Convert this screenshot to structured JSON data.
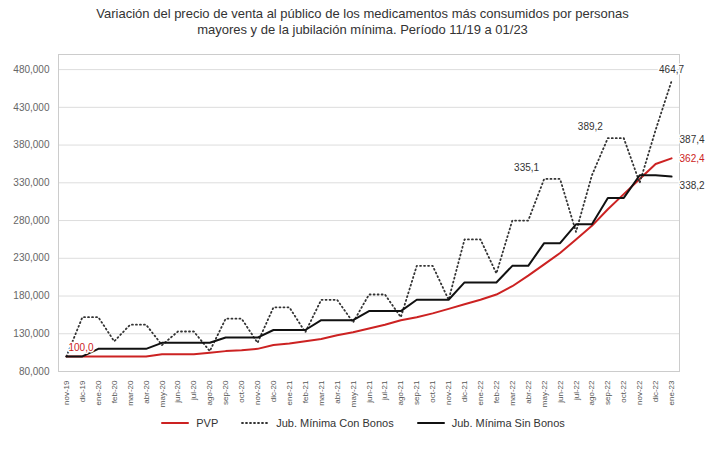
{
  "chart_data": {
    "type": "line",
    "title": "Variación del precio de venta al público de los medicamentos más consumidos por personas\nmayores y de la jubilación mínima. Período 11/19 a 01/23",
    "categories": [
      "nov-19",
      "dic-19",
      "ene-20",
      "feb-20",
      "mar-20",
      "abr-20",
      "may-20",
      "jun-20",
      "jul-20",
      "ago-20",
      "sep-20",
      "oct-20",
      "nov-20",
      "dic-20",
      "ene-21",
      "feb-21",
      "mar-21",
      "abr-21",
      "may-21",
      "jun-21",
      "jul-21",
      "ago-21",
      "sep-21",
      "oct-21",
      "nov-21",
      "dic-21",
      "ene-22",
      "feb-22",
      "mar-22",
      "abr-22",
      "may-22",
      "jun-22",
      "jul-22",
      "ago-22",
      "sep-22",
      "oct-22",
      "nov-22",
      "dic-22",
      "ene-23"
    ],
    "series": [
      {
        "name": "PVP",
        "color": "#cc2222",
        "line_style": "solid",
        "values": [
          100000,
          100000,
          100000,
          100000,
          100000,
          100000,
          103000,
          103000,
          103000,
          105000,
          107000,
          108000,
          110000,
          115000,
          117000,
          120000,
          123000,
          128000,
          132000,
          137000,
          142000,
          148000,
          152000,
          157000,
          163000,
          169000,
          175000,
          182000,
          193000,
          207000,
          222000,
          237000,
          255000,
          273000,
          295000,
          315000,
          335000,
          355000,
          362400
        ]
      },
      {
        "name": "Jub. Mínima Con Bonos",
        "color": "#333333",
        "line_style": "dotted",
        "values": [
          100000,
          152000,
          152000,
          120000,
          142000,
          142000,
          115000,
          133000,
          133000,
          107000,
          150000,
          150000,
          118000,
          165000,
          165000,
          132000,
          175000,
          175000,
          145000,
          182000,
          182000,
          152000,
          220000,
          220000,
          175000,
          255000,
          255000,
          210000,
          280000,
          280000,
          335100,
          335100,
          265000,
          340000,
          389200,
          389200,
          330000,
          400000,
          464700
        ]
      },
      {
        "name": "Jub. Mínima Sin Bonos",
        "color": "#111111",
        "line_style": "solid",
        "values": [
          100000,
          100000,
          110000,
          110000,
          110000,
          110000,
          118000,
          118000,
          118000,
          118000,
          125000,
          125000,
          125000,
          135000,
          135000,
          135000,
          148000,
          148000,
          148000,
          160000,
          160000,
          160000,
          175000,
          175000,
          175000,
          198000,
          198000,
          198000,
          220000,
          220000,
          250000,
          250000,
          275000,
          275000,
          310000,
          310000,
          340000,
          340000,
          338200
        ]
      }
    ],
    "ylim": [
      80000,
      500000
    ],
    "yticks": [
      {
        "value": 80000,
        "label": "80,000"
      },
      {
        "value": 130000,
        "label": "130,000"
      },
      {
        "value": 180000,
        "label": "180,000"
      },
      {
        "value": 230000,
        "label": "230,000"
      },
      {
        "value": 280000,
        "label": "280,000"
      },
      {
        "value": 330000,
        "label": "330,000"
      },
      {
        "value": 380000,
        "label": "380,000"
      },
      {
        "value": 430000,
        "label": "430,000"
      },
      {
        "value": 480000,
        "label": "480,000"
      }
    ],
    "grid": true,
    "legend": "bottom",
    "annotations": [
      {
        "text": "100,0",
        "x": "nov-19",
        "y": 100000,
        "color": "#cc2222"
      },
      {
        "text": "362,4",
        "x": "ene-23",
        "y": 362400,
        "color": "#cc2222"
      },
      {
        "text": "338,2",
        "x": "dic-22",
        "y": 338200,
        "color": "#333333"
      },
      {
        "text": "335,1",
        "x": "may-22",
        "y": 335100,
        "color": "#333333"
      },
      {
        "text": "389,2",
        "x": "sep-22",
        "y": 389200,
        "color": "#333333"
      },
      {
        "text": "464,7",
        "x": "ene-23",
        "y": 464700,
        "color": "#333333"
      },
      {
        "text": "387,4",
        "x": "ene-23",
        "y": 387400,
        "color": "#333333"
      }
    ]
  }
}
